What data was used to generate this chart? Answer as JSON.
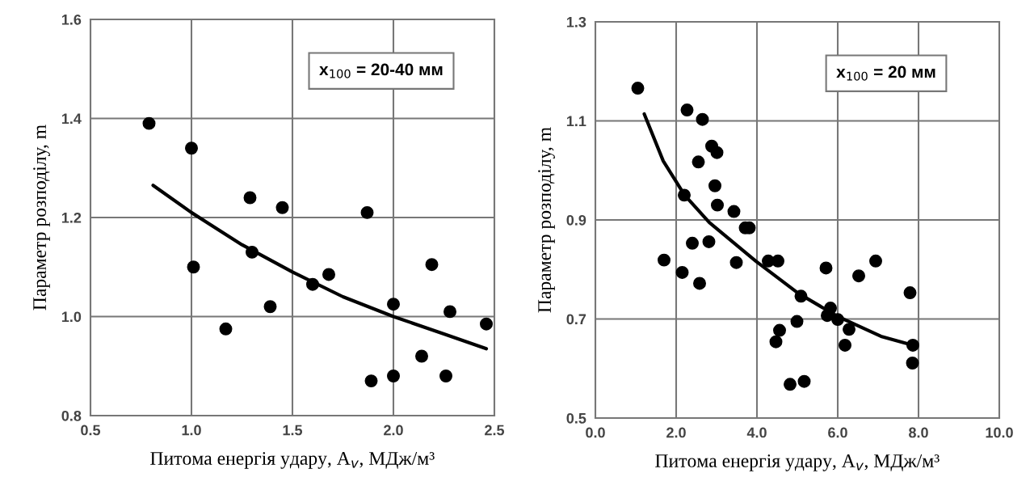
{
  "chart_data": [
    {
      "type": "scatter",
      "xlabel": "Питома енергія удару, A$_{v}$, МДж/м³",
      "ylabel": "Параметр розподілу, m",
      "annotations": [
        "x$_{100}$ = 20-40 мм"
      ],
      "xlim": [
        0.5,
        2.5
      ],
      "xticks": [
        0.5,
        {
          "value": 1,
          "label": "1.0"
        },
        1.5,
        {
          "value": 2,
          "label": "2.0"
        },
        2.5
      ],
      "ylim": [
        0.8,
        1.6
      ],
      "yticks": [
        0.8,
        {
          "value": 1,
          "label": "1.0"
        },
        1.2,
        1.4,
        1.6
      ],
      "grid": true,
      "legend": false,
      "series": [
        {
          "marker": "circle",
          "color": "#000000",
          "x": [
            0.79,
            1.0,
            1.01,
            1.17,
            1.29,
            1.3,
            1.39,
            1.45,
            1.6,
            1.68,
            1.87,
            1.89,
            2.0,
            2.0,
            2.14,
            2.19,
            2.26,
            2.28,
            2.46
          ],
          "values": [
            1.39,
            1.34,
            1.1,
            0.975,
            1.24,
            1.13,
            1.02,
            1.22,
            1.065,
            1.085,
            1.21,
            0.87,
            1.025,
            0.88,
            0.92,
            1.105,
            0.88,
            1.01,
            0.985
          ]
        },
        {
          "type": "line",
          "color": "#000000",
          "x": [
            0.81,
            1.0,
            1.25,
            1.5,
            1.75,
            2.0,
            2.25,
            2.46
          ],
          "values": [
            1.265,
            1.21,
            1.145,
            1.09,
            1.04,
            1.0,
            0.965,
            0.935
          ]
        }
      ]
    },
    {
      "type": "scatter",
      "xlabel": "Питома енергія удару, A$_{v}$, МДж/м³",
      "ylabel": "Параметр розподілу, m",
      "annotations": [
        "x$_{100}$ = 20 мм"
      ],
      "xlim": [
        0.0,
        10.0
      ],
      "xticks": [
        {
          "value": 0,
          "label": "0.0"
        },
        {
          "value": 2,
          "label": "2.0"
        },
        {
          "value": 4,
          "label": "4.0"
        },
        {
          "value": 6,
          "label": "6.0"
        },
        {
          "value": 8,
          "label": "8.0"
        },
        {
          "value": 10,
          "label": "10.0"
        }
      ],
      "ylim": [
        0.5,
        1.3
      ],
      "yticks": [
        0.5,
        0.7,
        0.9,
        1.1,
        1.3
      ],
      "grid": true,
      "legend": false,
      "series": [
        {
          "marker": "circle",
          "color": "#000000",
          "x": [
            1.05,
            2.27,
            2.65,
            2.88,
            3.01,
            2.55,
            2.96,
            2.2,
            3.02,
            3.43,
            3.71,
            3.81,
            1.7,
            2.4,
            2.81,
            2.15,
            2.58,
            3.49,
            4.28,
            4.52,
            5.09,
            4.99,
            4.56,
            4.47,
            4.82,
            5.17,
            5.71,
            5.82,
            5.74,
            6.0,
            6.28,
            6.18,
            6.52,
            6.94,
            7.79,
            7.86,
            7.85
          ],
          "values": [
            1.166,
            1.122,
            1.103,
            1.049,
            1.036,
            1.017,
            0.969,
            0.95,
            0.93,
            0.917,
            0.884,
            0.884,
            0.819,
            0.853,
            0.856,
            0.794,
            0.772,
            0.814,
            0.817,
            0.817,
            0.746,
            0.695,
            0.677,
            0.654,
            0.568,
            0.574,
            0.803,
            0.722,
            0.707,
            0.699,
            0.679,
            0.647,
            0.787,
            0.817,
            0.753,
            0.647,
            0.611
          ]
        },
        {
          "type": "line",
          "color": "#000000",
          "x": [
            1.21,
            1.68,
            2.21,
            2.82,
            3.97,
            5.02,
            6.0,
            7.07,
            7.9
          ],
          "values": [
            1.114,
            1.019,
            0.95,
            0.895,
            0.817,
            0.752,
            0.705,
            0.665,
            0.646
          ]
        }
      ]
    }
  ]
}
